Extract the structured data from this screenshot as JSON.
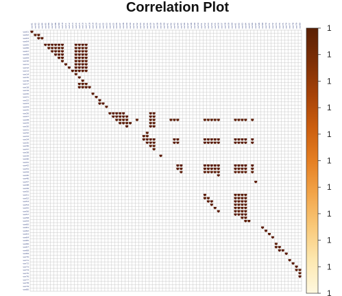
{
  "chart_data": {
    "type": "heatmap",
    "title": "Correlation Plot",
    "matrix_size": 80,
    "row_labels": [
      "var01",
      "var02",
      "var03",
      "var04",
      "var05",
      "var06",
      "var07",
      "var08",
      "var09",
      "var10",
      "var11",
      "var12",
      "var13",
      "var14",
      "var15",
      "var16",
      "var17",
      "var18",
      "var19",
      "var20",
      "var21",
      "var22",
      "var23",
      "var24",
      "var25",
      "var26",
      "var27",
      "var28",
      "var29",
      "var30",
      "var31",
      "var32",
      "var33",
      "var34",
      "var35",
      "var36",
      "var37",
      "var38",
      "var39",
      "var40",
      "var41",
      "var42",
      "var43",
      "var44",
      "var45",
      "var46",
      "var47",
      "var48",
      "var49",
      "var50",
      "var51",
      "var52",
      "var53",
      "var54",
      "var55",
      "var56",
      "var57",
      "var58",
      "var59",
      "var60",
      "var61",
      "var62",
      "var63",
      "var64",
      "var65",
      "var66",
      "var67",
      "var68",
      "var69",
      "var70",
      "var71",
      "var72",
      "var73",
      "var74",
      "var75",
      "var76",
      "var77",
      "var78",
      "var79",
      "var80"
    ],
    "col_labels": [
      "var01",
      "var02",
      "var03",
      "var04",
      "var05",
      "var06",
      "var07",
      "var08",
      "var09",
      "var10",
      "var11",
      "var12",
      "var13",
      "var14",
      "var15",
      "var16",
      "var17",
      "var18",
      "var19",
      "var20",
      "var21",
      "var22",
      "var23",
      "var24",
      "var25",
      "var26",
      "var27",
      "var28",
      "var29",
      "var30",
      "var31",
      "var32",
      "var33",
      "var34",
      "var35",
      "var36",
      "var37",
      "var38",
      "var39",
      "var40",
      "var41",
      "var42",
      "var43",
      "var44",
      "var45",
      "var46",
      "var47",
      "var48",
      "var49",
      "var50",
      "var51",
      "var52",
      "var53",
      "var54",
      "var55",
      "var56",
      "var57",
      "var58",
      "var59",
      "var60",
      "var61",
      "var62",
      "var63",
      "var64",
      "var65",
      "var66",
      "var67",
      "var68",
      "var69",
      "var70",
      "var71",
      "var72",
      "var73",
      "var74",
      "var75",
      "var76",
      "var77",
      "var78",
      "var79",
      "var80"
    ],
    "cells": [
      [
        0,
        0
      ],
      [
        1,
        1
      ],
      [
        1,
        2
      ],
      [
        2,
        2
      ],
      [
        2,
        3
      ],
      [
        4,
        4
      ],
      [
        4,
        5
      ],
      [
        4,
        6
      ],
      [
        4,
        7
      ],
      [
        4,
        8
      ],
      [
        4,
        9
      ],
      [
        4,
        13
      ],
      [
        4,
        14
      ],
      [
        4,
        15
      ],
      [
        4,
        16
      ],
      [
        5,
        5
      ],
      [
        5,
        6
      ],
      [
        5,
        7
      ],
      [
        5,
        8
      ],
      [
        5,
        9
      ],
      [
        5,
        13
      ],
      [
        5,
        14
      ],
      [
        5,
        15
      ],
      [
        5,
        16
      ],
      [
        6,
        6
      ],
      [
        6,
        7
      ],
      [
        6,
        8
      ],
      [
        6,
        9
      ],
      [
        6,
        13
      ],
      [
        6,
        14
      ],
      [
        6,
        15
      ],
      [
        6,
        16
      ],
      [
        7,
        7
      ],
      [
        7,
        8
      ],
      [
        7,
        9
      ],
      [
        7,
        13
      ],
      [
        7,
        14
      ],
      [
        7,
        15
      ],
      [
        7,
        16
      ],
      [
        8,
        8
      ],
      [
        8,
        9
      ],
      [
        8,
        13
      ],
      [
        8,
        14
      ],
      [
        8,
        15
      ],
      [
        8,
        16
      ],
      [
        9,
        9
      ],
      [
        9,
        13
      ],
      [
        9,
        14
      ],
      [
        9,
        15
      ],
      [
        9,
        16
      ],
      [
        10,
        10
      ],
      [
        10,
        13
      ],
      [
        10,
        14
      ],
      [
        10,
        15
      ],
      [
        10,
        16
      ],
      [
        11,
        11
      ],
      [
        11,
        13
      ],
      [
        11,
        14
      ],
      [
        11,
        15
      ],
      [
        11,
        16
      ],
      [
        12,
        12
      ],
      [
        12,
        13
      ],
      [
        12,
        14
      ],
      [
        12,
        15
      ],
      [
        12,
        16
      ],
      [
        13,
        13
      ],
      [
        14,
        14
      ],
      [
        15,
        15
      ],
      [
        16,
        14
      ],
      [
        16,
        15
      ],
      [
        16,
        16
      ],
      [
        17,
        14
      ],
      [
        17,
        15
      ],
      [
        17,
        16
      ],
      [
        17,
        17
      ],
      [
        19,
        18
      ],
      [
        20,
        19
      ],
      [
        21,
        20
      ],
      [
        22,
        20
      ],
      [
        22,
        21
      ],
      [
        23,
        22
      ],
      [
        25,
        23
      ],
      [
        25,
        24
      ],
      [
        25,
        25
      ],
      [
        25,
        26
      ],
      [
        25,
        27
      ],
      [
        25,
        35
      ],
      [
        25,
        36
      ],
      [
        26,
        24
      ],
      [
        26,
        25
      ],
      [
        26,
        26
      ],
      [
        26,
        27
      ],
      [
        26,
        28
      ],
      [
        26,
        35
      ],
      [
        26,
        36
      ],
      [
        27,
        25
      ],
      [
        27,
        26
      ],
      [
        27,
        27
      ],
      [
        27,
        28
      ],
      [
        27,
        31
      ],
      [
        27,
        35
      ],
      [
        27,
        36
      ],
      [
        27,
        41
      ],
      [
        27,
        42
      ],
      [
        27,
        43
      ],
      [
        27,
        51
      ],
      [
        27,
        52
      ],
      [
        27,
        53
      ],
      [
        27,
        54
      ],
      [
        27,
        55
      ],
      [
        27,
        60
      ],
      [
        27,
        61
      ],
      [
        27,
        62
      ],
      [
        27,
        63
      ],
      [
        27,
        65
      ],
      [
        28,
        26
      ],
      [
        28,
        27
      ],
      [
        28,
        28
      ],
      [
        28,
        29
      ],
      [
        28,
        35
      ],
      [
        28,
        36
      ],
      [
        29,
        28
      ],
      [
        29,
        35
      ],
      [
        29,
        36
      ],
      [
        31,
        34
      ],
      [
        32,
        33
      ],
      [
        32,
        34
      ],
      [
        33,
        33
      ],
      [
        33,
        34
      ],
      [
        33,
        35
      ],
      [
        33,
        36
      ],
      [
        33,
        42
      ],
      [
        33,
        43
      ],
      [
        33,
        51
      ],
      [
        33,
        52
      ],
      [
        33,
        53
      ],
      [
        33,
        54
      ],
      [
        33,
        55
      ],
      [
        33,
        60
      ],
      [
        33,
        61
      ],
      [
        33,
        62
      ],
      [
        33,
        63
      ],
      [
        33,
        65
      ],
      [
        34,
        34
      ],
      [
        34,
        35
      ],
      [
        34,
        36
      ],
      [
        34,
        42
      ],
      [
        34,
        43
      ],
      [
        34,
        51
      ],
      [
        34,
        52
      ],
      [
        34,
        53
      ],
      [
        34,
        54
      ],
      [
        34,
        55
      ],
      [
        34,
        60
      ],
      [
        34,
        61
      ],
      [
        34,
        62
      ],
      [
        34,
        63
      ],
      [
        34,
        65
      ],
      [
        35,
        35
      ],
      [
        35,
        36
      ],
      [
        36,
        36
      ],
      [
        38,
        38
      ],
      [
        41,
        43
      ],
      [
        41,
        44
      ],
      [
        41,
        51
      ],
      [
        41,
        52
      ],
      [
        41,
        53
      ],
      [
        41,
        54
      ],
      [
        41,
        55
      ],
      [
        41,
        60
      ],
      [
        41,
        61
      ],
      [
        41,
        62
      ],
      [
        41,
        63
      ],
      [
        41,
        65
      ],
      [
        42,
        43
      ],
      [
        42,
        44
      ],
      [
        42,
        51
      ],
      [
        42,
        52
      ],
      [
        42,
        53
      ],
      [
        42,
        54
      ],
      [
        42,
        55
      ],
      [
        42,
        60
      ],
      [
        42,
        61
      ],
      [
        42,
        62
      ],
      [
        42,
        63
      ],
      [
        42,
        65
      ],
      [
        43,
        44
      ],
      [
        43,
        51
      ],
      [
        43,
        52
      ],
      [
        43,
        53
      ],
      [
        43,
        54
      ],
      [
        43,
        55
      ],
      [
        43,
        60
      ],
      [
        43,
        61
      ],
      [
        43,
        62
      ],
      [
        43,
        63
      ],
      [
        43,
        65
      ],
      [
        44,
        55
      ],
      [
        46,
        66
      ],
      [
        50,
        51
      ],
      [
        50,
        60
      ],
      [
        50,
        61
      ],
      [
        50,
        62
      ],
      [
        50,
        63
      ],
      [
        51,
        51
      ],
      [
        51,
        52
      ],
      [
        51,
        60
      ],
      [
        51,
        61
      ],
      [
        51,
        62
      ],
      [
        51,
        63
      ],
      [
        52,
        52
      ],
      [
        52,
        53
      ],
      [
        52,
        60
      ],
      [
        52,
        61
      ],
      [
        52,
        62
      ],
      [
        52,
        63
      ],
      [
        53,
        53
      ],
      [
        53,
        60
      ],
      [
        53,
        61
      ],
      [
        53,
        62
      ],
      [
        53,
        63
      ],
      [
        54,
        54
      ],
      [
        54,
        60
      ],
      [
        54,
        61
      ],
      [
        54,
        62
      ],
      [
        54,
        63
      ],
      [
        55,
        55
      ],
      [
        55,
        60
      ],
      [
        55,
        61
      ],
      [
        55,
        62
      ],
      [
        55,
        63
      ],
      [
        56,
        60
      ],
      [
        56,
        61
      ],
      [
        56,
        62
      ],
      [
        56,
        63
      ],
      [
        57,
        62
      ],
      [
        57,
        63
      ],
      [
        58,
        63
      ],
      [
        58,
        64
      ],
      [
        60,
        68
      ],
      [
        61,
        69
      ],
      [
        62,
        70
      ],
      [
        63,
        71
      ],
      [
        65,
        72
      ],
      [
        66,
        72
      ],
      [
        66,
        73
      ],
      [
        67,
        73
      ],
      [
        67,
        74
      ],
      [
        68,
        75
      ],
      [
        70,
        76
      ],
      [
        71,
        77
      ],
      [
        72,
        78
      ],
      [
        73,
        79
      ],
      [
        73,
        78
      ],
      [
        74,
        79
      ],
      [
        75,
        79
      ]
    ],
    "colorbar": {
      "ticks": [
        "1",
        "1",
        "1",
        "1",
        "1",
        "1",
        "1",
        "1",
        "1",
        "1",
        "1"
      ],
      "colors": [
        "#fff8df",
        "#fde8b0",
        "#f9c97a",
        "#f2a54a",
        "#e57f23",
        "#cb5e0f",
        "#a64208",
        "#7d2f06",
        "#5a2004"
      ]
    },
    "cell_color": "#5a1a05",
    "grid_color": "#c8c8c8"
  }
}
